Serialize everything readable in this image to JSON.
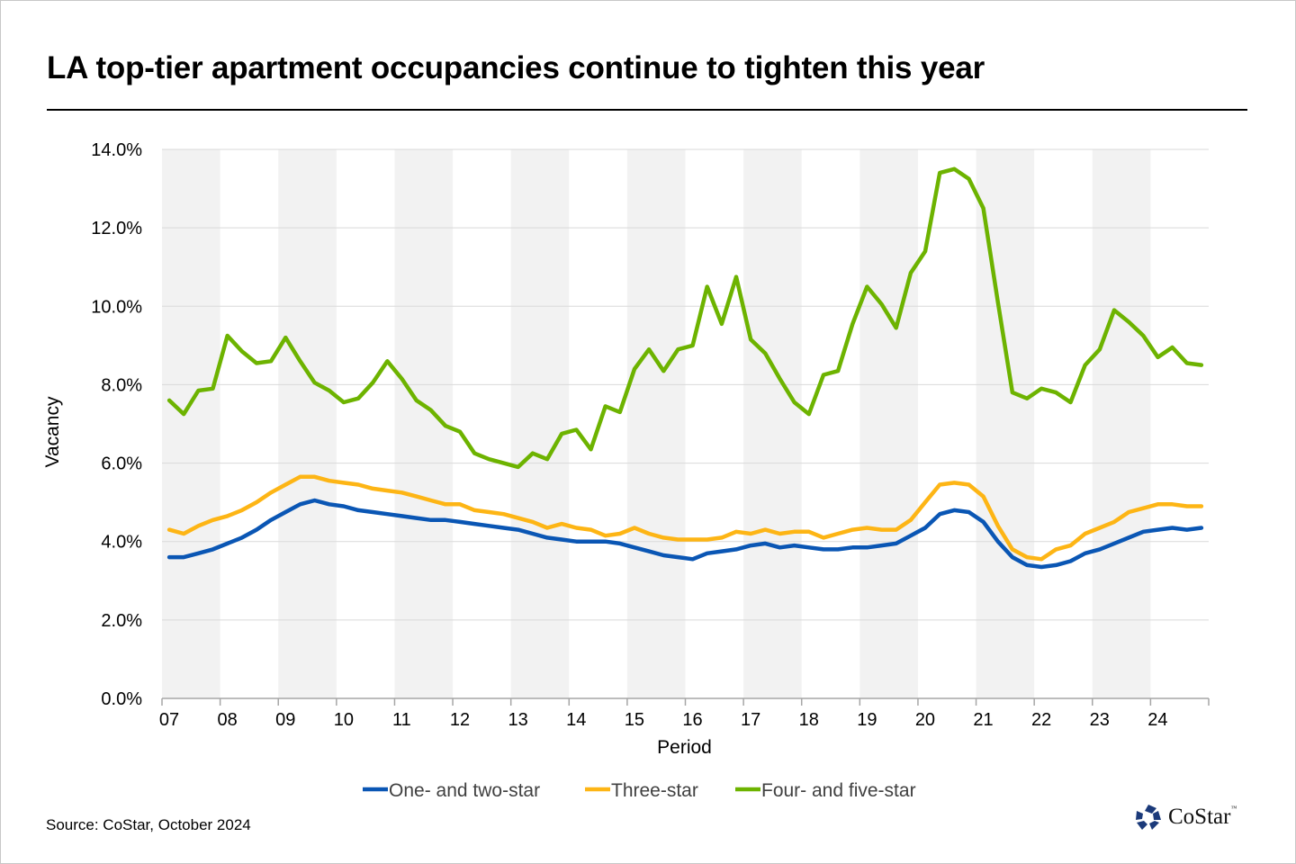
{
  "title": "LA top-tier apartment occupancies continue to tighten this year",
  "source": "Source: CoStar, October 2024",
  "logo": {
    "text": "CoStar",
    "tm": "™"
  },
  "chart_data": {
    "type": "line",
    "title": "LA top-tier apartment occupancies continue to tighten this year",
    "xlabel": "Period",
    "ylabel": "Vacancy",
    "ylim": [
      0,
      14
    ],
    "yticks": [
      "0.0%",
      "2.0%",
      "4.0%",
      "6.0%",
      "8.0%",
      "10.0%",
      "12.0%",
      "14.0%"
    ],
    "ytick_values": [
      0,
      2,
      4,
      6,
      8,
      10,
      12,
      14
    ],
    "xtick_labels": [
      "07",
      "08",
      "09",
      "10",
      "11",
      "12",
      "13",
      "14",
      "15",
      "16",
      "17",
      "18",
      "19",
      "20",
      "21",
      "22",
      "23",
      "24"
    ],
    "points_per_year": 4,
    "grid": true,
    "legend_position": "bottom",
    "series": [
      {
        "name": "One- and two-star",
        "color": "#0a56b4",
        "values": [
          3.6,
          3.6,
          3.7,
          3.8,
          3.95,
          4.1,
          4.3,
          4.55,
          4.75,
          4.95,
          5.05,
          4.95,
          4.9,
          4.8,
          4.75,
          4.7,
          4.65,
          4.6,
          4.55,
          4.55,
          4.5,
          4.45,
          4.4,
          4.35,
          4.3,
          4.2,
          4.1,
          4.05,
          4.0,
          4.0,
          4.0,
          3.95,
          3.85,
          3.75,
          3.65,
          3.6,
          3.55,
          3.7,
          3.75,
          3.8,
          3.9,
          3.95,
          3.85,
          3.9,
          3.85,
          3.8,
          3.8,
          3.85,
          3.85,
          3.9,
          3.95,
          4.15,
          4.35,
          4.7,
          4.8,
          4.75,
          4.5,
          4.0,
          3.6,
          3.4,
          3.35,
          3.4,
          3.5,
          3.7,
          3.8,
          3.95,
          4.1,
          4.25,
          4.3,
          4.35,
          4.3,
          4.35
        ]
      },
      {
        "name": "Three-star",
        "color": "#fdb515",
        "values": [
          4.3,
          4.2,
          4.4,
          4.55,
          4.65,
          4.8,
          5.0,
          5.25,
          5.45,
          5.65,
          5.65,
          5.55,
          5.5,
          5.45,
          5.35,
          5.3,
          5.25,
          5.15,
          5.05,
          4.95,
          4.95,
          4.8,
          4.75,
          4.7,
          4.6,
          4.5,
          4.35,
          4.45,
          4.35,
          4.3,
          4.15,
          4.2,
          4.35,
          4.2,
          4.1,
          4.05,
          4.05,
          4.05,
          4.1,
          4.25,
          4.2,
          4.3,
          4.2,
          4.25,
          4.25,
          4.1,
          4.2,
          4.3,
          4.35,
          4.3,
          4.3,
          4.55,
          5.0,
          5.45,
          5.5,
          5.45,
          5.15,
          4.4,
          3.8,
          3.6,
          3.55,
          3.8,
          3.9,
          4.2,
          4.35,
          4.5,
          4.75,
          4.85,
          4.95,
          4.95,
          4.9,
          4.9
        ]
      },
      {
        "name": "Four- and five-star",
        "color": "#6db300",
        "values": [
          7.6,
          7.25,
          7.85,
          7.9,
          9.25,
          8.85,
          8.55,
          8.6,
          9.2,
          8.6,
          8.05,
          7.85,
          7.55,
          7.65,
          8.05,
          8.6,
          8.15,
          7.6,
          7.35,
          6.95,
          6.8,
          6.25,
          6.1,
          6.0,
          5.9,
          6.25,
          6.1,
          6.75,
          6.85,
          6.35,
          7.45,
          7.3,
          8.4,
          8.9,
          8.35,
          8.9,
          9.0,
          10.5,
          9.55,
          10.75,
          9.15,
          8.8,
          8.15,
          7.55,
          7.25,
          8.25,
          8.35,
          9.55,
          10.5,
          10.05,
          9.45,
          10.85,
          11.4,
          13.4,
          13.5,
          13.25,
          12.5,
          10.1,
          7.8,
          7.65,
          7.9,
          7.8,
          7.55,
          8.5,
          8.9,
          9.9,
          9.6,
          9.25,
          8.7,
          8.95,
          8.55,
          8.5
        ]
      }
    ]
  }
}
